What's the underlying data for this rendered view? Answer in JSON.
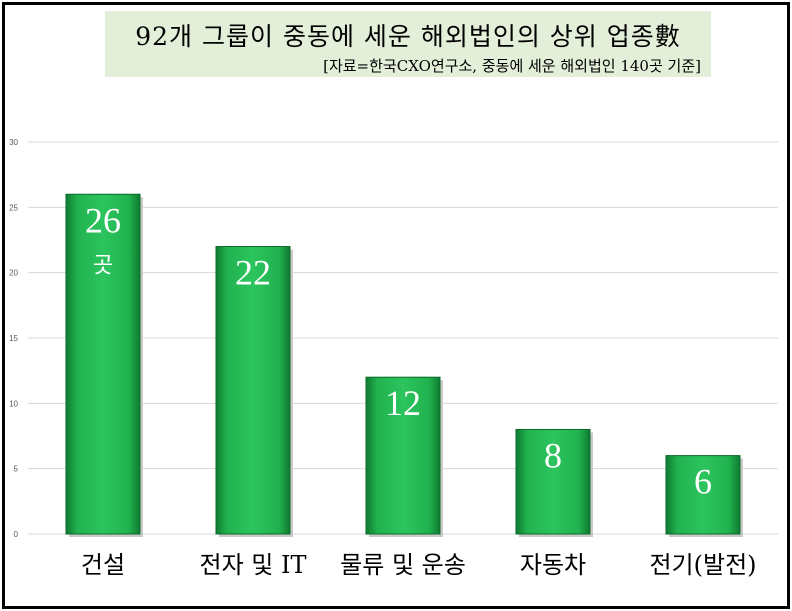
{
  "chart_data": {
    "type": "bar",
    "title": "92개 그룹이 중동에 세운 해외법인의 상위 업종數",
    "subtitle": "[자료=한국CXO연구소, 중동에 세운 해외법인 140곳 기준]",
    "categories": [
      "건설",
      "전자 및 IT",
      "물류 및 운송",
      "자동차",
      "전기(발전)"
    ],
    "values": [
      26,
      22,
      12,
      8,
      6
    ],
    "data_labels": [
      "26",
      "22",
      "12",
      "8",
      "6"
    ],
    "first_bar_unit": "곳",
    "ylim": [
      0,
      30
    ],
    "yticks": [
      0,
      5,
      10,
      15,
      20,
      25,
      30
    ],
    "grid": true,
    "bar_color": "#1aa84a",
    "xlabel": "",
    "ylabel": ""
  }
}
